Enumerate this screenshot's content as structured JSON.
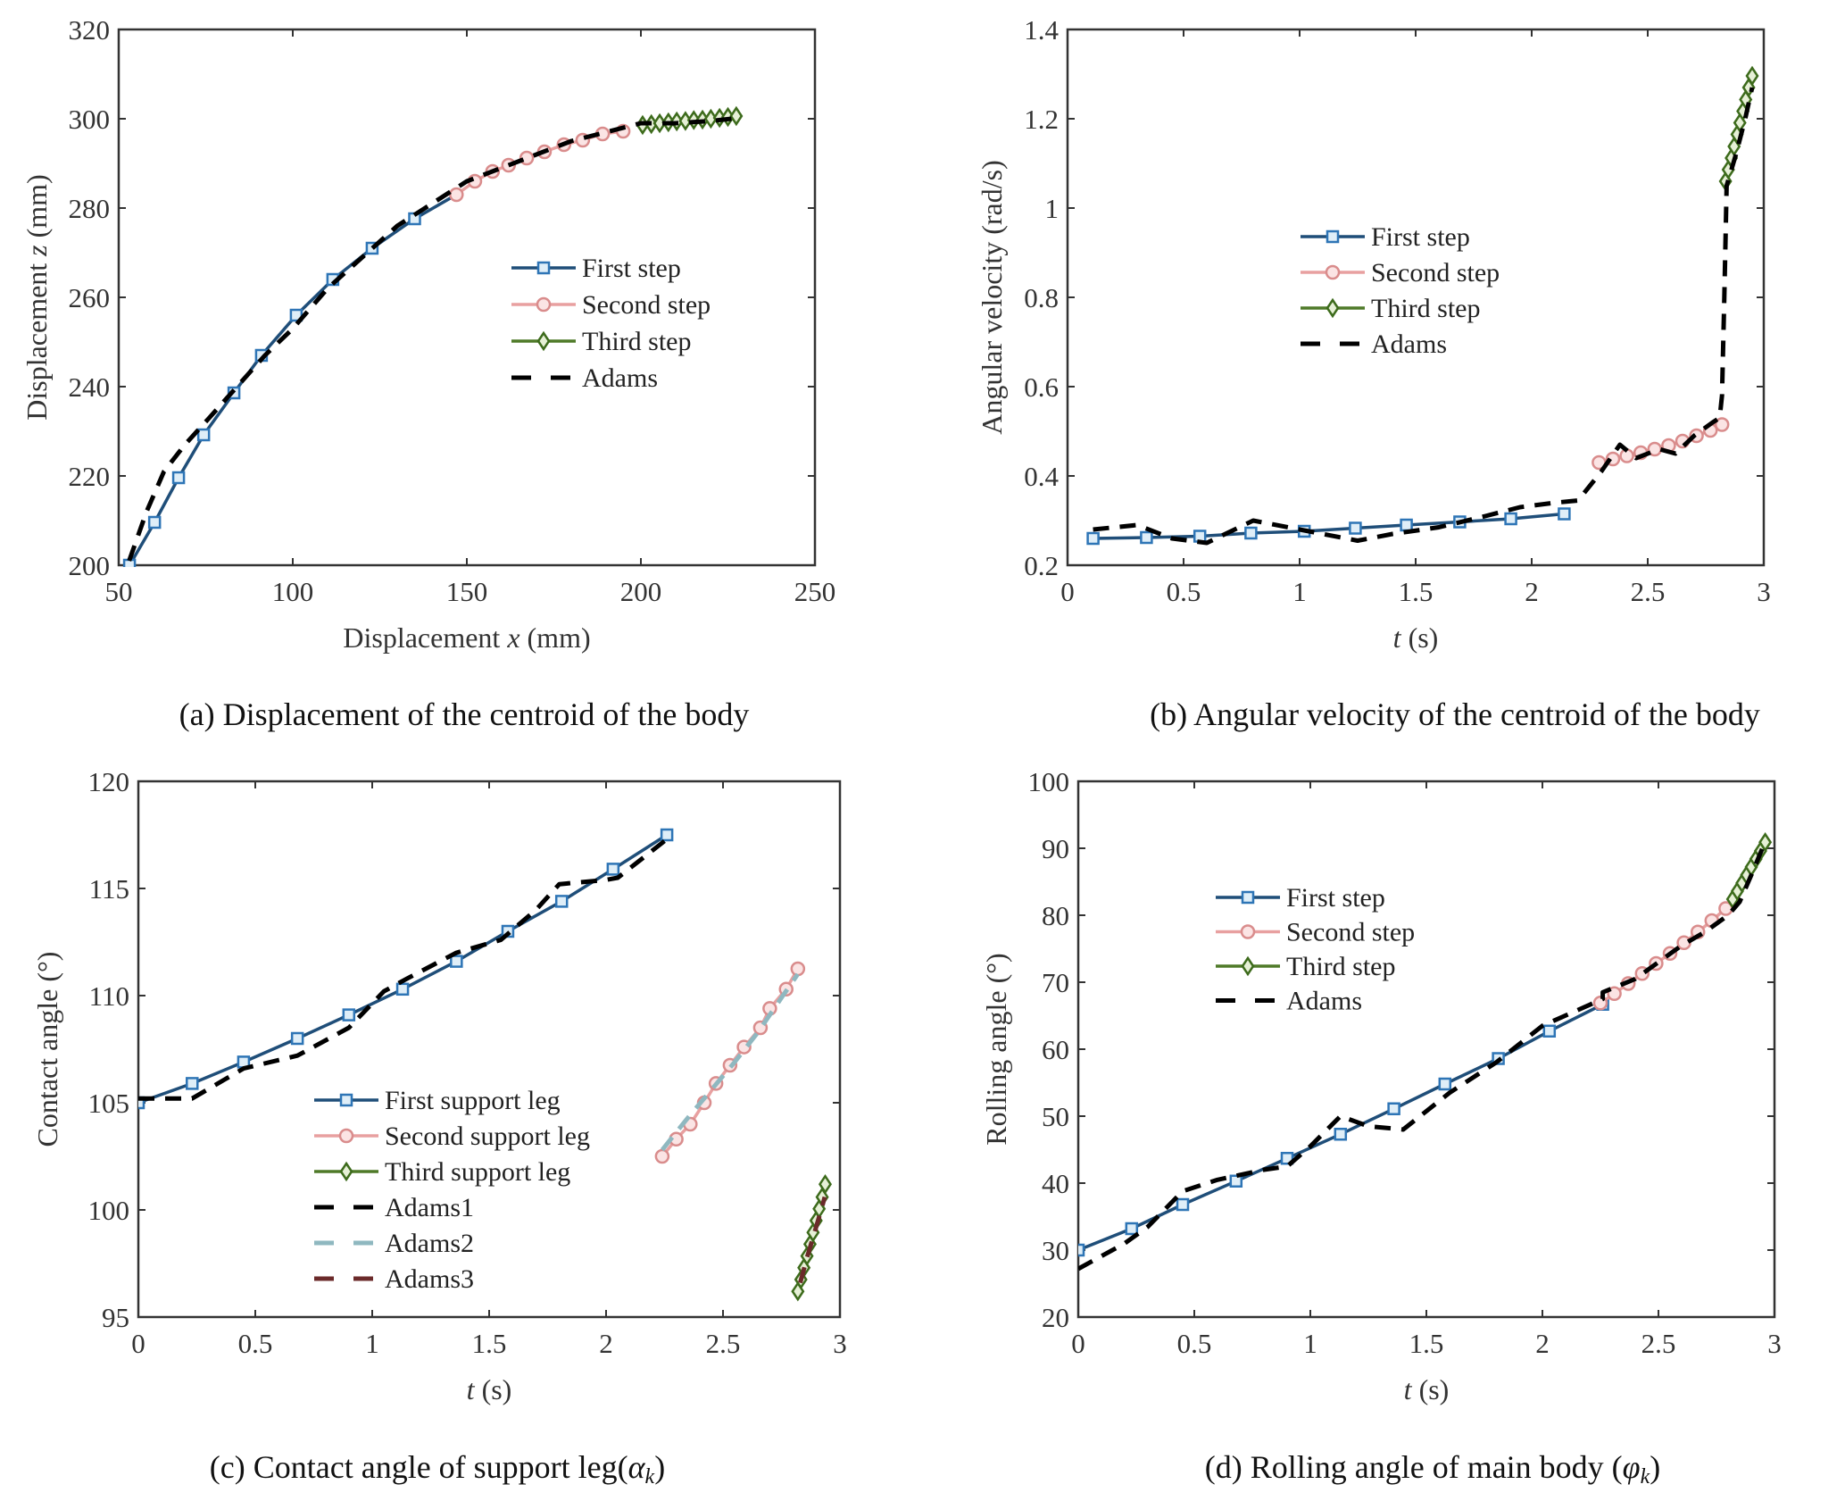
{
  "colors": {
    "first": "#1f4e79",
    "first_marker": "#2e75b6",
    "second": "#e8a0a0",
    "second_marker": "#d98c8c",
    "third": "#4f7a28",
    "third_marker": "#3d6b1c",
    "adams": "#000000",
    "adams2": "#8fb8c0",
    "adams3": "#6b2a2a",
    "axis": "#333333"
  },
  "chart_data": [
    {
      "id": "a",
      "type": "line",
      "caption": "(a) Displacement of the centroid of the body",
      "xlabel": "Displacement  x (mm)",
      "xlabel_parts": [
        "Displacement  ",
        "x",
        " (mm)"
      ],
      "ylabel": "Displacement  z (mm)",
      "ylabel_parts": [
        "Displacement  ",
        "z",
        " (mm)"
      ],
      "xlim": [
        50,
        250
      ],
      "ylim": [
        200,
        320
      ],
      "xticks": [
        50,
        100,
        150,
        200,
        250
      ],
      "yticks": [
        200,
        220,
        240,
        260,
        280,
        300,
        320
      ],
      "grid": false,
      "legend_position": "center-right",
      "series": [
        {
          "name": "First step",
          "style": "first",
          "marker": "square",
          "x": [
            53.1,
            60.3,
            67.2,
            74.4,
            83.1,
            91.0,
            101.0,
            111.5,
            122.8,
            135.0,
            147.0
          ],
          "y": [
            200.0,
            209.6,
            219.6,
            229.2,
            238.6,
            247.0,
            256.0,
            264.0,
            271.0,
            277.6,
            283.0
          ],
          "marker_count": 10
        },
        {
          "name": "Second step",
          "style": "second",
          "marker": "circle",
          "x": [
            147.0,
            152.3,
            157.4,
            162.0,
            167.2,
            172.3,
            177.9,
            183.3,
            189.0,
            194.9
          ],
          "y": [
            283.0,
            286.0,
            288.2,
            289.6,
            291.2,
            292.6,
            294.2,
            295.2,
            296.6,
            297.2
          ]
        },
        {
          "name": "Third step",
          "style": "third",
          "marker": "diamond",
          "x": [
            200.5,
            203.0,
            205.4,
            207.9,
            210.3,
            212.8,
            215.2,
            217.7,
            220.1,
            222.6,
            225.0,
            227.4
          ],
          "y": [
            298.6,
            298.8,
            299.0,
            299.2,
            299.4,
            299.5,
            299.7,
            299.8,
            300.0,
            300.2,
            300.4,
            300.6
          ]
        },
        {
          "name": "Adams",
          "style": "adams",
          "marker": "none",
          "dashed": true,
          "x": [
            53,
            58,
            63,
            69,
            76,
            84,
            92,
            100,
            110,
            120,
            130,
            140,
            150,
            160,
            170,
            180,
            190,
            200,
            210,
            220,
            226
          ],
          "y": [
            201,
            212,
            221,
            227,
            233,
            240,
            247,
            253,
            262,
            269,
            276,
            281,
            286,
            289,
            292,
            295,
            297,
            299,
            299,
            299.5,
            300
          ]
        }
      ]
    },
    {
      "id": "b",
      "type": "line",
      "caption": "(b) Angular velocity of the centroid of the body",
      "xlabel": "t (s)",
      "xlabel_parts": [
        "",
        "t",
        " (s)"
      ],
      "ylabel": "Angular velocity (rad/s)",
      "ylabel_parts": [
        "Angular velocity (rad/s)",
        "",
        ""
      ],
      "xlim": [
        0,
        3
      ],
      "ylim": [
        0.2,
        1.4
      ],
      "xticks": [
        0,
        0.5,
        1,
        1.5,
        2,
        2.5,
        3
      ],
      "yticks": [
        0.2,
        0.4,
        0.6,
        0.8,
        1,
        1.2,
        1.4
      ],
      "grid": false,
      "legend_position": "center",
      "series": [
        {
          "name": "First step",
          "style": "first",
          "marker": "square",
          "x": [
            0.11,
            0.34,
            0.57,
            0.79,
            1.02,
            1.24,
            1.46,
            1.69,
            1.91,
            2.14
          ],
          "y": [
            0.26,
            0.262,
            0.265,
            0.272,
            0.276,
            0.283,
            0.29,
            0.297,
            0.304,
            0.315
          ]
        },
        {
          "name": "Second step",
          "style": "second",
          "marker": "circle",
          "x": [
            2.29,
            2.35,
            2.41,
            2.47,
            2.53,
            2.59,
            2.65,
            2.71,
            2.77,
            2.82
          ],
          "y": [
            0.43,
            0.438,
            0.445,
            0.452,
            0.46,
            0.468,
            0.478,
            0.49,
            0.502,
            0.515
          ]
        },
        {
          "name": "Third step",
          "style": "third",
          "marker": "diamond",
          "x": [
            2.835,
            2.847,
            2.86,
            2.872,
            2.885,
            2.897,
            2.91,
            2.922,
            2.935,
            2.95
          ],
          "y": [
            1.06,
            1.086,
            1.112,
            1.138,
            1.165,
            1.191,
            1.217,
            1.243,
            1.27,
            1.296
          ]
        },
        {
          "name": "Adams",
          "style": "adams",
          "marker": "none",
          "dashed": true,
          "x": [
            0.11,
            0.3,
            0.45,
            0.6,
            0.8,
            0.95,
            1.1,
            1.25,
            1.4,
            1.6,
            1.8,
            1.95,
            2.1,
            2.2,
            2.3,
            2.38,
            2.45,
            2.55,
            2.62,
            2.7,
            2.78,
            2.81,
            2.82,
            2.83,
            2.84,
            2.88,
            2.92,
            2.95
          ],
          "y": [
            0.28,
            0.29,
            0.26,
            0.25,
            0.3,
            0.285,
            0.27,
            0.255,
            0.27,
            0.285,
            0.31,
            0.33,
            0.34,
            0.345,
            0.41,
            0.47,
            0.44,
            0.46,
            0.45,
            0.49,
            0.52,
            0.53,
            0.58,
            0.8,
            1.05,
            1.12,
            1.2,
            1.27
          ]
        }
      ]
    },
    {
      "id": "c",
      "type": "line",
      "caption": "(c) Contact angle of support leg(αk)",
      "caption_parts": [
        "(c) Contact angle of support leg(",
        "α",
        "k",
        ")"
      ],
      "xlabel": "t (s)",
      "xlabel_parts": [
        "",
        "t",
        " (s)"
      ],
      "ylabel": "Contact angle (°)",
      "ylabel_parts": [
        "Contact angle (°)",
        "",
        ""
      ],
      "xlim": [
        0,
        3
      ],
      "ylim": [
        95,
        120
      ],
      "xticks": [
        0,
        0.5,
        1,
        1.5,
        2,
        2.5,
        3
      ],
      "yticks": [
        95,
        100,
        105,
        110,
        115,
        120
      ],
      "grid": false,
      "legend_position": "lower-center",
      "series": [
        {
          "name": "First support leg",
          "style": "first",
          "marker": "square",
          "x": [
            0,
            0.23,
            0.45,
            0.68,
            0.9,
            1.13,
            1.36,
            1.58,
            1.81,
            2.03,
            2.26
          ],
          "y": [
            105.0,
            105.9,
            106.9,
            108.0,
            109.1,
            110.3,
            111.6,
            113.0,
            114.4,
            115.9,
            117.5
          ]
        },
        {
          "name": "Second support leg",
          "style": "second",
          "marker": "circle",
          "x": [
            2.24,
            2.3,
            2.36,
            2.42,
            2.47,
            2.53,
            2.59,
            2.66,
            2.7,
            2.77,
            2.82
          ],
          "y": [
            102.5,
            103.3,
            104.0,
            105.0,
            105.9,
            106.75,
            107.6,
            108.5,
            109.4,
            110.3,
            111.25
          ]
        },
        {
          "name": "Third support leg",
          "style": "third",
          "marker": "diamond",
          "x": [
            2.82,
            2.833,
            2.846,
            2.859,
            2.872,
            2.885,
            2.898,
            2.911,
            2.924,
            2.937
          ],
          "y": [
            96.2,
            96.75,
            97.3,
            97.85,
            98.4,
            98.95,
            99.5,
            100.05,
            100.6,
            101.2
          ]
        },
        {
          "name": "Adams1",
          "style": "adams",
          "marker": "none",
          "dashed": true,
          "x": [
            0,
            0.23,
            0.45,
            0.68,
            0.9,
            1.05,
            1.15,
            1.36,
            1.55,
            1.7,
            1.8,
            2.0,
            2.05,
            2.26
          ],
          "y": [
            105.2,
            105.2,
            106.6,
            107.2,
            108.5,
            110.2,
            110.8,
            112.0,
            112.6,
            114.0,
            115.2,
            115.4,
            115.5,
            117.3
          ]
        },
        {
          "name": "Adams2",
          "style": "adams2",
          "marker": "none",
          "dashed": true,
          "x": [
            2.24,
            2.35,
            2.45,
            2.55,
            2.65,
            2.75,
            2.82
          ],
          "y": [
            102.8,
            104.3,
            105.6,
            106.9,
            108.3,
            109.9,
            111.0
          ]
        },
        {
          "name": "Adams3",
          "style": "adams3",
          "marker": "none",
          "dashed": true,
          "x": [
            2.83,
            2.86,
            2.89,
            2.92,
            2.935
          ],
          "y": [
            96.6,
            97.8,
            98.9,
            100.0,
            100.6
          ]
        }
      ]
    },
    {
      "id": "d",
      "type": "line",
      "caption": "(d) Rolling angle of main body (φk)",
      "caption_parts": [
        "(d) Rolling angle of main body (",
        "φ",
        "k",
        ")"
      ],
      "xlabel": "t (s)",
      "xlabel_parts": [
        "",
        "t",
        " (s)"
      ],
      "ylabel": "Rolling angle (°)",
      "ylabel_parts": [
        "Rolling angle (°)",
        "",
        ""
      ],
      "xlim": [
        0,
        3
      ],
      "ylim": [
        20,
        100
      ],
      "xticks": [
        0,
        0.5,
        1,
        1.5,
        2,
        2.5,
        3
      ],
      "yticks": [
        20,
        30,
        40,
        50,
        60,
        70,
        80,
        90,
        100
      ],
      "grid": false,
      "legend_position": "upper-left",
      "series": [
        {
          "name": "First step",
          "style": "first",
          "marker": "square",
          "x": [
            0,
            0.23,
            0.45,
            0.68,
            0.9,
            1.13,
            1.36,
            1.58,
            1.81,
            2.03,
            2.26
          ],
          "y": [
            30.0,
            33.2,
            36.8,
            40.3,
            43.7,
            47.3,
            51.1,
            54.8,
            58.6,
            62.7,
            66.7
          ]
        },
        {
          "name": "Second step",
          "style": "second",
          "marker": "circle",
          "x": [
            2.25,
            2.31,
            2.37,
            2.43,
            2.49,
            2.55,
            2.61,
            2.67,
            2.73,
            2.79
          ],
          "y": [
            66.9,
            68.3,
            69.8,
            71.3,
            72.8,
            74.3,
            75.9,
            77.5,
            79.2,
            81.0
          ]
        },
        {
          "name": "Third step",
          "style": "third",
          "marker": "diamond",
          "x": [
            2.82,
            2.84,
            2.86,
            2.88,
            2.9,
            2.92,
            2.94,
            2.96
          ],
          "y": [
            82.4,
            83.6,
            84.8,
            86.0,
            87.2,
            88.4,
            89.6,
            90.9
          ]
        },
        {
          "name": "Adams",
          "style": "adams",
          "marker": "none",
          "dashed": true,
          "x": [
            0,
            0.2,
            0.3,
            0.45,
            0.6,
            0.8,
            0.9,
            1.0,
            1.13,
            1.25,
            1.4,
            1.6,
            1.8,
            2.0,
            2.26,
            2.26,
            2.4,
            2.6,
            2.7,
            2.8,
            2.85,
            2.9,
            2.96
          ],
          "y": [
            27.2,
            31.0,
            33.5,
            38.8,
            40.5,
            42.0,
            42.5,
            45.5,
            50.0,
            48.5,
            48.0,
            53.5,
            58.0,
            63.5,
            67.5,
            68.5,
            70.5,
            75.5,
            77.5,
            80.0,
            82.0,
            86.0,
            91.0
          ]
        }
      ]
    }
  ]
}
